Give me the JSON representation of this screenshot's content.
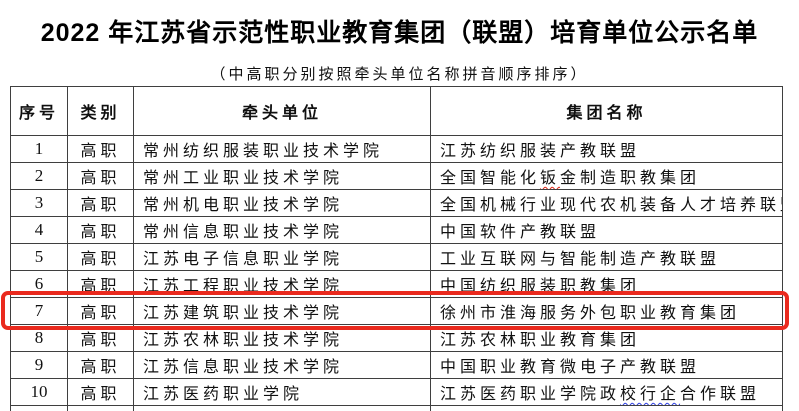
{
  "title": "2022 年江苏省示范性职业教育集团（联盟）培育单位公示名单",
  "subtitle": "（中高职分别按照牵头单位名称拼音顺序排序）",
  "colors": {
    "highlight_box": "#ea2a1e",
    "spellcheck_red": "#e02515",
    "spellcheck_blue": "#2b3de0",
    "table_border": "#3f3f3f",
    "text": "#101010"
  },
  "table": {
    "headers": [
      "序号",
      "类别",
      "牵头单位",
      "集团名称"
    ],
    "rows": [
      {
        "num": "1",
        "category": "高职",
        "lead": "常州纺织服装职业技术学院",
        "group": [
          {
            "text": "江苏纺织服装产教联盟"
          }
        ],
        "highlighted": false
      },
      {
        "num": "2",
        "category": "高职",
        "lead": "常州工业职业技术学院",
        "group": [
          {
            "text": "全国智能化"
          },
          {
            "text": "钣",
            "underline": "red"
          },
          {
            "text": "金制造职教集团"
          }
        ],
        "highlighted": false
      },
      {
        "num": "3",
        "category": "高职",
        "lead": "常州机电职业技术学院",
        "group": [
          {
            "text": "全国机械行业现代农机装备人才培养联盟"
          }
        ],
        "highlighted": false
      },
      {
        "num": "4",
        "category": "高职",
        "lead": "常州信息职业技术学院",
        "group": [
          {
            "text": "中国软件产教联盟"
          }
        ],
        "highlighted": false
      },
      {
        "num": "5",
        "category": "高职",
        "lead": "江苏电子信息职业学院",
        "group": [
          {
            "text": "工业互联网与智能制造产教联盟"
          }
        ],
        "highlighted": false
      },
      {
        "num": "6",
        "category": "高职",
        "lead": "江苏工程职业技术学院",
        "group": [
          {
            "text": "中国纺织服装职教集团"
          }
        ],
        "highlighted": false
      },
      {
        "num": "7",
        "category": "高职",
        "lead": "江苏建筑职业技术学院",
        "group": [
          {
            "text": "徐州市淮海服务外包职业教育集团"
          }
        ],
        "highlighted": true
      },
      {
        "num": "8",
        "category": "高职",
        "lead": "江苏农林职业技术学院",
        "group": [
          {
            "text": "江苏农林职业教育集团"
          }
        ],
        "highlighted": false
      },
      {
        "num": "9",
        "category": "高职",
        "lead": "江苏信息职业技术学院",
        "group": [
          {
            "text": "中国职业教育微电子产教联盟"
          }
        ],
        "highlighted": false
      },
      {
        "num": "10",
        "category": "高职",
        "lead": "江苏医药职业学院",
        "group": [
          {
            "text": "江苏医药职业学院政"
          },
          {
            "text": "校行企",
            "underline": "blue"
          },
          {
            "text": "合作联盟"
          }
        ],
        "highlighted": false
      }
    ]
  }
}
